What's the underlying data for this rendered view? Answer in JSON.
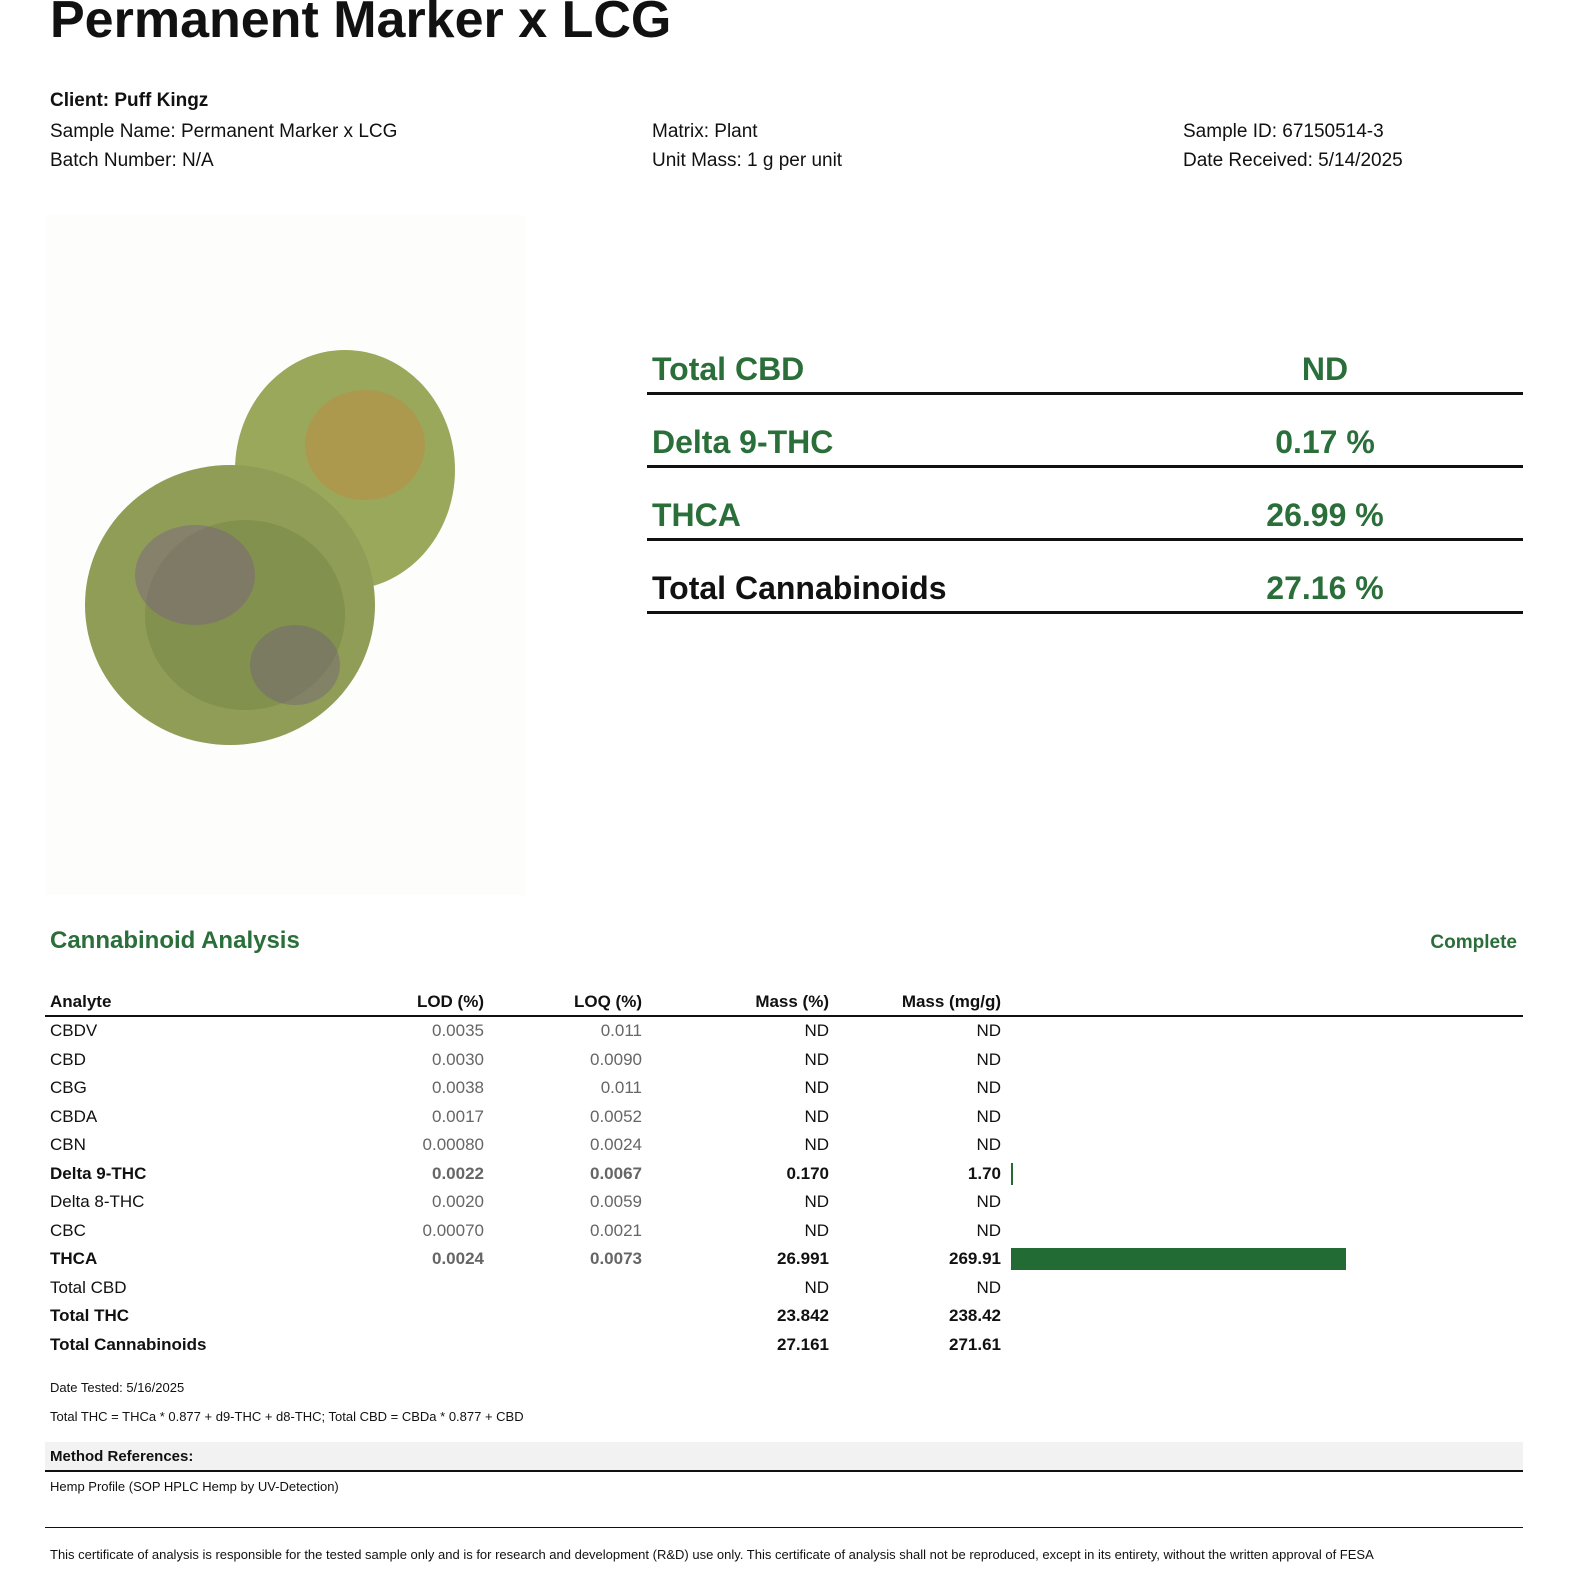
{
  "header": {
    "title": "Permanent Marker x LCG"
  },
  "sample_info": {
    "client": "Client: Puff Kingz",
    "col1": [
      "Sample Name: Permanent Marker x LCG",
      "Batch Number: N/A"
    ],
    "col2": [
      "Matrix: Plant",
      "Unit Mass: 1 g per unit"
    ],
    "col3": [
      "Sample ID: 67150514-3",
      "Date Received: 5/14/2025"
    ]
  },
  "summary": {
    "rows": [
      {
        "label": "Total CBD",
        "value": "ND",
        "label_color": "#2a6e3a"
      },
      {
        "label": "Delta 9-THC",
        "value": "0.17 %",
        "label_color": "#2a6e3a"
      },
      {
        "label": "THCA",
        "value": "26.99 %",
        "label_color": "#2a6e3a"
      },
      {
        "label": "Total Cannabinoids",
        "value": "27.16 %",
        "label_color": "#111111"
      }
    ]
  },
  "analysis": {
    "title": "Cannabinoid Analysis",
    "status": "Complete",
    "bar_color": "#236b35",
    "columns": [
      "Analyte",
      "LOD (%)",
      "LOQ (%)",
      "Mass (%)",
      "Mass (mg/g)"
    ],
    "rows": [
      {
        "analyte": "CBDV",
        "lod": "0.0035",
        "loq": "0.011",
        "mass_pct": "ND",
        "mass_mgg": "ND"
      },
      {
        "analyte": "CBD",
        "lod": "0.0030",
        "loq": "0.0090",
        "mass_pct": "ND",
        "mass_mgg": "ND"
      },
      {
        "analyte": "CBG",
        "lod": "0.0038",
        "loq": "0.011",
        "mass_pct": "ND",
        "mass_mgg": "ND"
      },
      {
        "analyte": "CBDA",
        "lod": "0.0017",
        "loq": "0.0052",
        "mass_pct": "ND",
        "mass_mgg": "ND"
      },
      {
        "analyte": "CBN",
        "lod": "0.00080",
        "loq": "0.0024",
        "mass_pct": "ND",
        "mass_mgg": "ND"
      },
      {
        "analyte": "Delta 9-THC",
        "lod": "0.0022",
        "loq": "0.0067",
        "mass_pct": "0.170",
        "mass_mgg": "1.70",
        "bold": true,
        "bar": true
      },
      {
        "analyte": "Delta 8-THC",
        "lod": "0.0020",
        "loq": "0.0059",
        "mass_pct": "ND",
        "mass_mgg": "ND"
      },
      {
        "analyte": "CBC",
        "lod": "0.00070",
        "loq": "0.0021",
        "mass_pct": "ND",
        "mass_mgg": "ND"
      },
      {
        "analyte": "THCA",
        "lod": "0.0024",
        "loq": "0.0073",
        "mass_pct": "26.991",
        "mass_mgg": "269.91",
        "bold": true,
        "bar": true
      },
      {
        "analyte": "Total CBD",
        "mass_pct": "ND",
        "mass_mgg": "ND"
      },
      {
        "analyte": "Total THC",
        "mass_pct": "23.842",
        "mass_mgg": "238.42",
        "bold": true
      },
      {
        "analyte": "Total Cannabinoids",
        "mass_pct": "27.161",
        "mass_mgg": "271.61",
        "bold": true
      }
    ],
    "date_tested": "Date Tested: 5/16/2025",
    "formula": "Total THC = THCa * 0.877 + d9-THC + d8-THC; Total CBD = CBDa * 0.877 + CBD"
  },
  "methods": {
    "title": "Method References:",
    "text": "Hemp Profile (SOP HPLC Hemp by UV-Detection)"
  },
  "footer": {
    "disclaimer": "This certificate of analysis is responsible for the tested sample only and is for research and development (R&D) use only. This certificate of analysis shall not be reproduced, except in its entirety, without the written approval of FESA"
  }
}
